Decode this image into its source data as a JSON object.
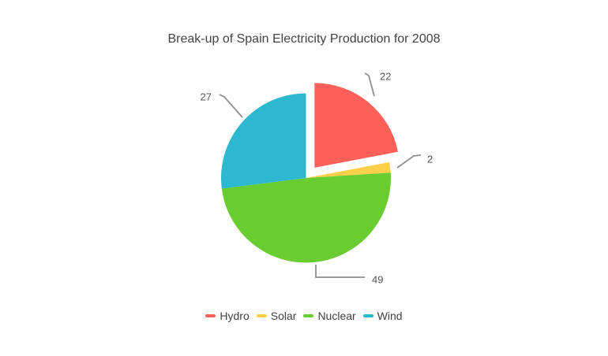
{
  "page": {
    "background_color": "#FFFFFF"
  },
  "chart_data": {
    "type": "pie",
    "title": "Break-up of Spain Electricity Production for 2008",
    "title_color": "#424242",
    "categories": [
      "Hydro",
      "Solar",
      "Nuclear",
      "Wind"
    ],
    "values": [
      22,
      2,
      49,
      27
    ],
    "slices": [
      {
        "label": "Hydro",
        "value": 22,
        "color": "#FD6058",
        "exploded": true
      },
      {
        "label": "Solar",
        "value": 2,
        "color": "#FCD04A",
        "exploded": false
      },
      {
        "label": "Nuclear",
        "value": 49,
        "color": "#69CC31",
        "exploded": false
      },
      {
        "label": "Wind",
        "value": 27,
        "color": "#2CB8CE",
        "exploded": false
      }
    ],
    "start_angle": "12 o'clock",
    "direction": "clockwise",
    "data_labels": [
      "22",
      "2",
      "49",
      "27"
    ],
    "label_text_color": "#565656",
    "leader_line_color": "#8E8E8E",
    "legend_position": "bottom",
    "legend_entries": [
      "Hydro",
      "Solar",
      "Nuclear",
      "Wind"
    ],
    "legend_text_color": "#3F3F3F",
    "grid": "off",
    "axes": "none"
  }
}
